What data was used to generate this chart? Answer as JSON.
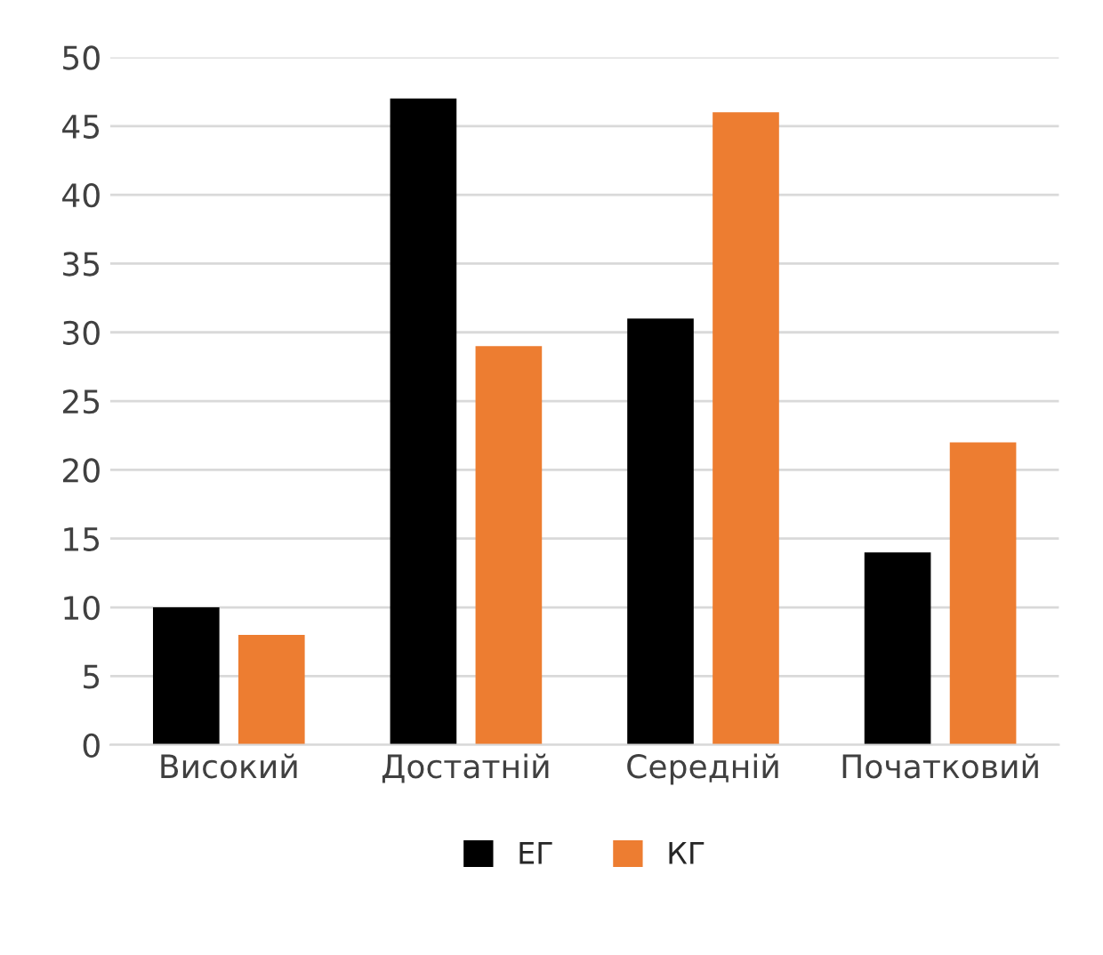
{
  "chart_data": {
    "type": "bar",
    "categories": [
      "Високий",
      "Достатній",
      "Середній",
      "Початковий"
    ],
    "series": [
      {
        "name": "ЕГ",
        "color": "#000000",
        "values": [
          10,
          47,
          31,
          14
        ]
      },
      {
        "name": "КГ",
        "color": "#ed7d31",
        "values": [
          8,
          29,
          46,
          22
        ]
      }
    ],
    "ylim": [
      0,
      50
    ],
    "yticks": [
      0,
      5,
      10,
      15,
      20,
      25,
      30,
      35,
      40,
      45,
      50
    ],
    "grid": "y",
    "legend": "bottom"
  }
}
